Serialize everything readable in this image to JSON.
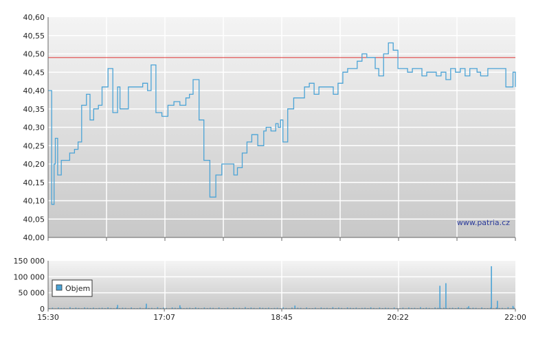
{
  "chart_data": [
    {
      "type": "line",
      "title": "",
      "xlabel": "",
      "ylabel": "",
      "ylim": [
        40.0,
        40.6
      ],
      "y_ticks": [
        "40,60",
        "40,55",
        "40,50",
        "40,45",
        "40,40",
        "40,35",
        "40,30",
        "40,25",
        "40,20",
        "40,15",
        "40,10",
        "40,05",
        "40,00"
      ],
      "grid": true,
      "reference_line": 40.49,
      "colors": {
        "line": "#4aa3d6",
        "reference": "#e03030",
        "background_top": "#f4f4f4",
        "background_bottom": "#c8c8c8",
        "grid": "#ffffff"
      },
      "watermark": "www.patria.cz",
      "series": [
        {
          "x": [
            "15:30",
            "15:31",
            "15:32",
            "15:33",
            "15:35",
            "15:36",
            "15:38",
            "15:41",
            "15:45",
            "15:48",
            "15:52",
            "15:55",
            "15:58",
            "16:02",
            "16:05",
            "16:08",
            "16:12",
            "16:15",
            "16:20",
            "16:24",
            "16:28",
            "16:30",
            "16:33",
            "16:37",
            "16:40",
            "16:45",
            "16:49",
            "16:53",
            "16:56",
            "17:00",
            "17:05",
            "17:10",
            "17:15",
            "17:20",
            "17:25",
            "17:28",
            "17:31",
            "17:33",
            "17:36",
            "17:40",
            "17:45",
            "17:50",
            "17:55",
            "17:59",
            "18:02",
            "18:05",
            "18:08",
            "18:12",
            "18:16",
            "18:20",
            "18:25",
            "18:30",
            "18:32",
            "18:36",
            "18:40",
            "18:42",
            "18:44",
            "18:46",
            "18:50",
            "18:55",
            "19:00",
            "19:04",
            "19:08",
            "19:12",
            "19:16",
            "19:20",
            "19:24",
            "19:28",
            "19:32",
            "19:36",
            "19:40",
            "19:44",
            "19:48",
            "19:52",
            "19:56",
            "20:00",
            "20:03",
            "20:06",
            "20:10",
            "20:14",
            "20:18",
            "20:22",
            "20:26",
            "20:30",
            "20:34",
            "20:38",
            "20:42",
            "20:46",
            "20:50",
            "20:54",
            "20:58",
            "21:02",
            "21:06",
            "21:10",
            "21:14",
            "21:18",
            "21:22",
            "21:25",
            "21:28",
            "21:31",
            "21:34",
            "21:37",
            "21:40",
            "21:43",
            "21:46",
            "21:49",
            "21:52",
            "21:55",
            "21:58",
            "22:00"
          ],
          "y": [
            40.4,
            40.4,
            40.4,
            40.09,
            40.2,
            40.27,
            40.17,
            40.21,
            40.21,
            40.23,
            40.24,
            40.26,
            40.36,
            40.39,
            40.32,
            40.35,
            40.36,
            40.41,
            40.46,
            40.34,
            40.41,
            40.35,
            40.35,
            40.41,
            40.41,
            40.41,
            40.42,
            40.4,
            40.47,
            40.34,
            40.33,
            40.36,
            40.37,
            40.36,
            40.38,
            40.39,
            40.43,
            40.43,
            40.32,
            40.21,
            40.11,
            40.17,
            40.2,
            40.2,
            40.2,
            40.17,
            40.19,
            40.23,
            40.26,
            40.28,
            40.25,
            40.29,
            40.3,
            40.29,
            40.31,
            40.3,
            40.32,
            40.26,
            40.35,
            40.38,
            40.38,
            40.41,
            40.42,
            40.39,
            40.41,
            40.41,
            40.41,
            40.39,
            40.42,
            40.45,
            40.46,
            40.46,
            40.48,
            40.5,
            40.49,
            40.49,
            40.46,
            40.44,
            40.5,
            40.53,
            40.51,
            40.46,
            40.46,
            40.45,
            40.46,
            40.46,
            40.44,
            40.45,
            40.45,
            40.44,
            40.45,
            40.43,
            40.46,
            40.45,
            40.46,
            40.44,
            40.46,
            40.46,
            40.45,
            40.44,
            40.44,
            40.46,
            40.46,
            40.46,
            40.46,
            40.46,
            40.41,
            40.41,
            40.45,
            40.41
          ]
        }
      ]
    },
    {
      "type": "bar",
      "title": "",
      "xlabel": "",
      "ylabel": "",
      "ylim": [
        0,
        150000
      ],
      "y_ticks": [
        "150 000",
        "100 000",
        "50 000",
        "0"
      ],
      "x_ticks": [
        "15:30",
        "17:07",
        "18:45",
        "20:22",
        "22:00"
      ],
      "legend": {
        "label": "Objem",
        "position": "left"
      },
      "colors": {
        "bar": "#4aa3d6"
      },
      "series": [
        {
          "name": "Objem",
          "spikes": [
            {
              "time": "16:28",
              "value": 12000
            },
            {
              "time": "16:52",
              "value": 16000
            },
            {
              "time": "17:20",
              "value": 11000
            },
            {
              "time": "18:56",
              "value": 10000
            },
            {
              "time": "20:57",
              "value": 72000
            },
            {
              "time": "21:02",
              "value": 80000
            },
            {
              "time": "21:21",
              "value": 8000
            },
            {
              "time": "21:40",
              "value": 133000
            },
            {
              "time": "21:45",
              "value": 25000
            },
            {
              "time": "21:58",
              "value": 9000
            }
          ],
          "baseline_values": [
            2000,
            3500,
            1500,
            4000,
            2500,
            3000,
            1800,
            5000,
            2200,
            3800,
            2700,
            1600,
            4200,
            3100,
            2400,
            3600,
            1900,
            2800,
            3300,
            2100,
            4500,
            2600,
            1700,
            3900,
            2300,
            3400,
            2900,
            1500,
            4100,
            2000
          ]
        }
      ]
    }
  ]
}
